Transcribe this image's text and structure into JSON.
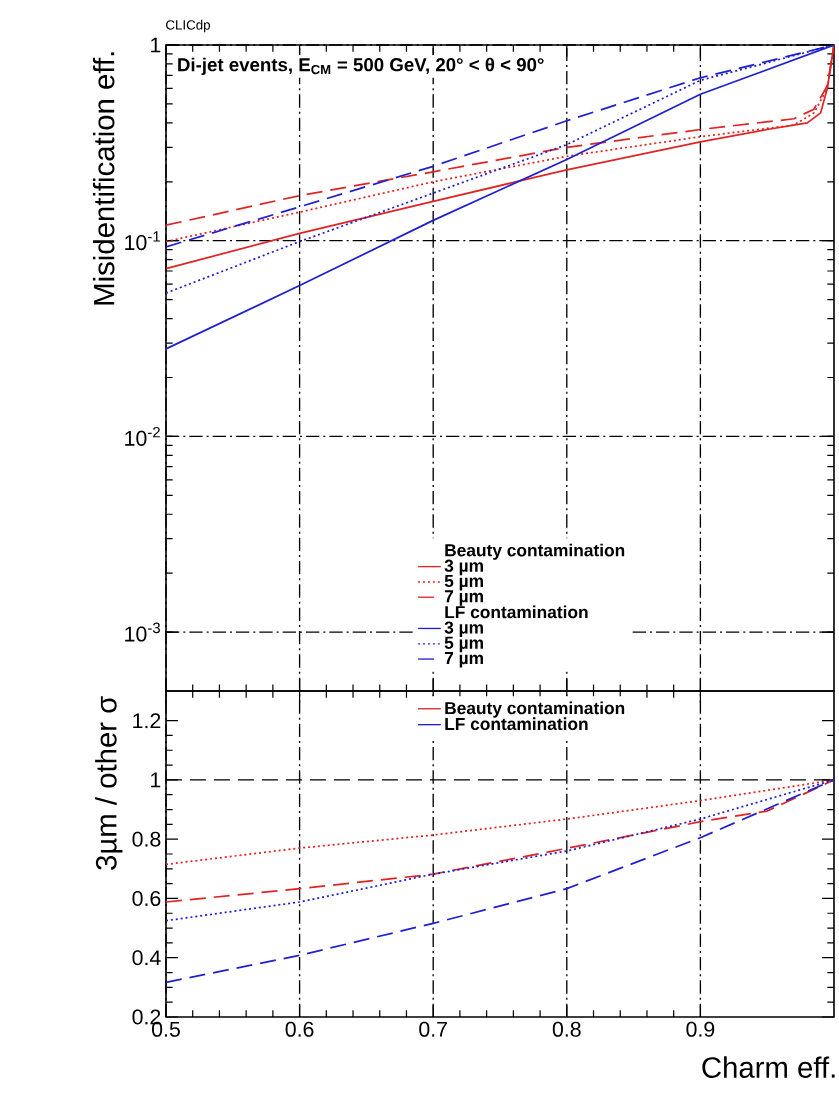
{
  "chart_data": [
    {
      "type": "line",
      "title": "CLICdp",
      "subtitle": "Di-jet events, E$_{CM}$ = 500 GeV, 20° < θ < 90°",
      "ylabel": "Misidentification eff.",
      "log": "y",
      "xlim": [
        0.5,
        1
      ],
      "ylim": [
        0.0005,
        1
      ],
      "xticks": [
        0.5,
        0.6,
        0.7,
        0.8,
        0.9
      ],
      "yticks": [
        {
          "value": 0.001,
          "label": "10$^{-3}$"
        },
        {
          "value": 0.01,
          "label": "10$^{-2}$"
        },
        {
          "value": 0.1,
          "label": "10$^{-1}$"
        },
        1
      ],
      "tick_labels": "y",
      "grid": true,
      "legend": "bottom",
      "annotations": [
        "Beauty contamination",
        "LF contamination"
      ],
      "series": [
        {
          "name": "3 µm",
          "color": "#e02424",
          "line_style": "solid",
          "x": [
            0.5,
            0.6,
            0.7,
            0.8,
            0.9,
            0.95,
            0.98,
            0.99,
            0.995,
            1.0
          ],
          "values": [
            0.072,
            0.109,
            0.159,
            0.23,
            0.32,
            0.37,
            0.4,
            0.45,
            0.6,
            1.0
          ]
        },
        {
          "name": "5 µm",
          "color": "#e02424",
          "line_style": "dotted",
          "x": [
            0.5,
            0.6,
            0.7,
            0.8,
            0.9,
            0.97,
            0.985,
            0.995,
            1.0
          ],
          "values": [
            0.099,
            0.14,
            0.2,
            0.27,
            0.34,
            0.39,
            0.45,
            0.6,
            1.0
          ]
        },
        {
          "name": "7 µm",
          "color": "#e02424",
          "line_style": "dashed",
          "x": [
            0.5,
            0.6,
            0.7,
            0.8,
            0.9,
            0.97,
            0.985,
            0.995,
            1.0
          ],
          "values": [
            0.12,
            0.17,
            0.225,
            0.3,
            0.37,
            0.42,
            0.47,
            0.62,
            1.0
          ]
        },
        {
          "name": "3 µm",
          "color": "#2020d0",
          "line_style": "solid",
          "x": [
            0.5,
            0.6,
            0.7,
            0.8,
            0.9,
            1.0
          ],
          "values": [
            0.028,
            0.059,
            0.127,
            0.26,
            0.56,
            1.0
          ]
        },
        {
          "name": "5 µm",
          "color": "#2020d0",
          "line_style": "dotted",
          "x": [
            0.5,
            0.6,
            0.7,
            0.8,
            0.9,
            1.0
          ],
          "values": [
            0.054,
            0.099,
            0.175,
            0.31,
            0.66,
            1.0
          ]
        },
        {
          "name": "7 µm",
          "color": "#2020d0",
          "line_style": "dashed",
          "x": [
            0.5,
            0.6,
            0.7,
            0.8,
            0.9,
            1.0
          ],
          "values": [
            0.093,
            0.149,
            0.24,
            0.41,
            0.68,
            1.0
          ]
        }
      ]
    },
    {
      "type": "line",
      "xlabel": "Charm eff.",
      "ylabel": "3µm / other σ",
      "xlim": [
        0.5,
        1
      ],
      "ylim": [
        0.2,
        1.3
      ],
      "xticks": [
        0.5,
        0.6,
        0.7,
        0.8,
        0.9
      ],
      "yticks": [
        0.2,
        0.4,
        0.6,
        0.8,
        1,
        1.2
      ],
      "grid": "x",
      "legend": "top",
      "ref_lines": [
        {
          "axis": "y",
          "value": 1,
          "line_style": "dashed"
        }
      ],
      "series": [
        {
          "name": "Beauty contamination",
          "color": "#e02424",
          "line_style": "dotted",
          "x": [
            0.5,
            0.6,
            0.7,
            0.8,
            0.9,
            1.0
          ],
          "values": [
            0.715,
            0.77,
            0.814,
            0.868,
            0.93,
            1.0
          ]
        },
        {
          "color": "#e02424",
          "line_style": "dashed",
          "x": [
            0.5,
            0.6,
            0.7,
            0.8,
            0.9,
            0.95,
            1.0
          ],
          "values": [
            0.588,
            0.633,
            0.682,
            0.769,
            0.859,
            0.895,
            1.0
          ]
        },
        {
          "name": "LF contamination",
          "color": "#2020d0",
          "line_style": "dotted",
          "x": [
            0.5,
            0.6,
            0.7,
            0.8,
            0.9,
            1.0
          ],
          "values": [
            0.525,
            0.588,
            0.682,
            0.76,
            0.868,
            1.0
          ]
        },
        {
          "color": "#2020d0",
          "line_style": "dashed",
          "x": [
            0.5,
            0.6,
            0.7,
            0.8,
            0.9,
            1.0
          ],
          "values": [
            0.317,
            0.408,
            0.516,
            0.633,
            0.805,
            1.0
          ]
        }
      ]
    }
  ]
}
